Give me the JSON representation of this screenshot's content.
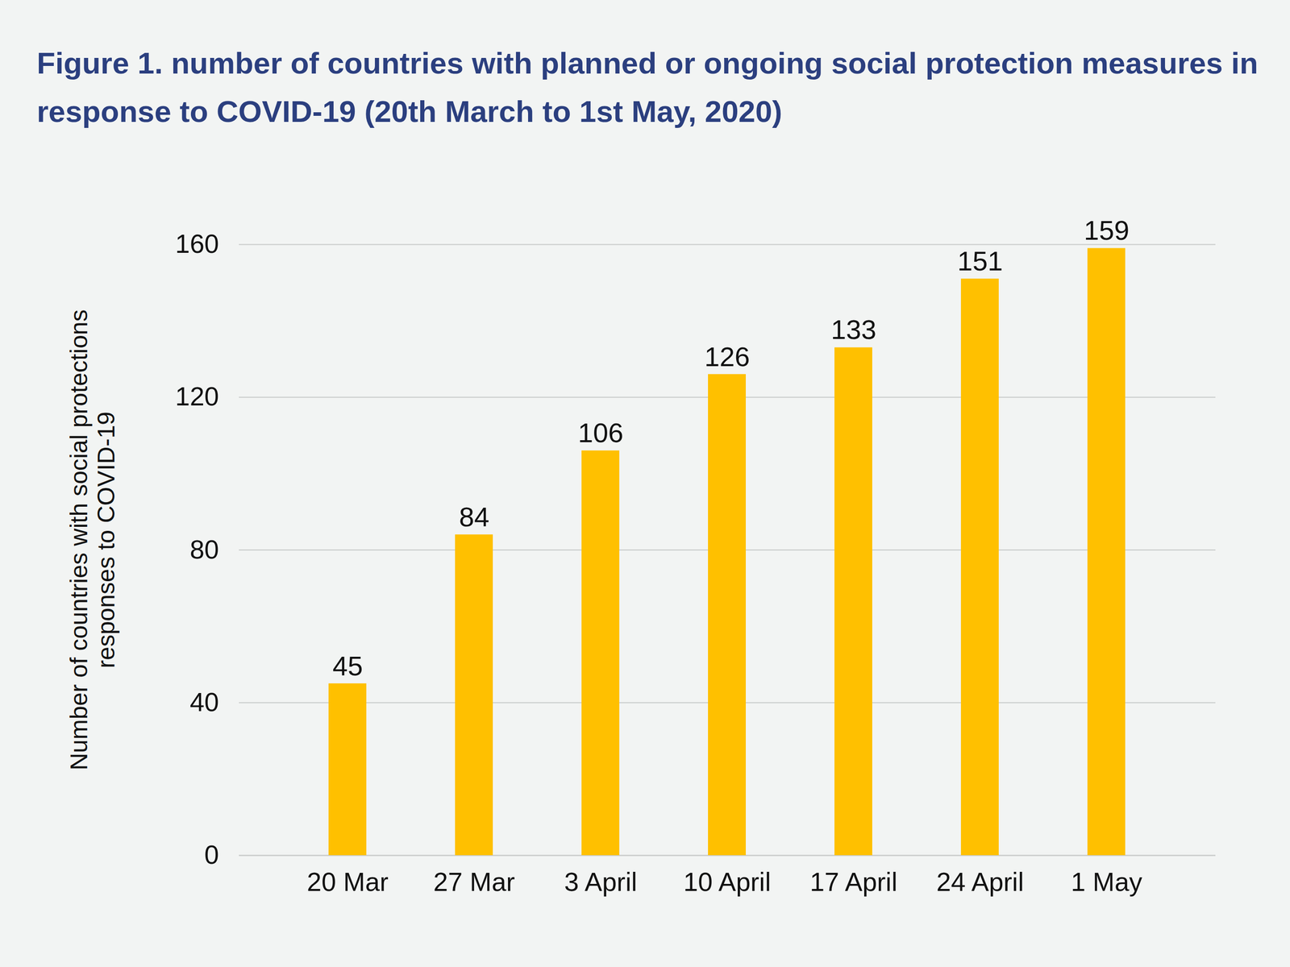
{
  "chart_data": {
    "type": "bar",
    "title": "Figure 1. number of countries with planned or ongoing social protection measures in response to COVID-19  (20th March to 1st May, 2020)",
    "y_label": "Number of countries with social protections responses to COVID-19",
    "categories": [
      "20 Mar",
      "27 Mar",
      "3 April",
      "10 April",
      "17 April",
      "24 April",
      "1 May"
    ],
    "values": [
      45,
      84,
      106,
      126,
      133,
      151,
      159
    ],
    "color": "#ffc000",
    "ylim": [
      0,
      160
    ],
    "yticks": [
      0,
      40,
      80,
      120,
      160
    ],
    "grid": true,
    "data_labels": true
  }
}
